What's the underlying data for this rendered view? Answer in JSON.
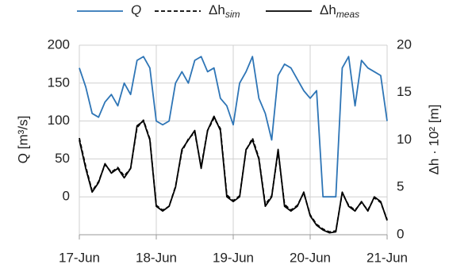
{
  "chart_data": {
    "type": "line",
    "y_label": "Q [m³/s]",
    "y2_label": "Δh · 10² [m]",
    "x": [
      0,
      2,
      4,
      6,
      8,
      10,
      12,
      14,
      16,
      18,
      20,
      22,
      24,
      26,
      28,
      30,
      32,
      34,
      36,
      38,
      40,
      42,
      44,
      46,
      48,
      50,
      52,
      54,
      56,
      58,
      60,
      62,
      64,
      66,
      68,
      70,
      72,
      74,
      76,
      78,
      80,
      82,
      84,
      86,
      88,
      90,
      92,
      94,
      96
    ],
    "xlim": [
      0,
      96
    ],
    "xticks": [
      {
        "value": 0,
        "label": "17-Jun"
      },
      {
        "value": 24,
        "label": "18-Jun"
      },
      {
        "value": 48,
        "label": "19-Jun"
      },
      {
        "value": 72,
        "label": "20-Jun"
      },
      {
        "value": 96,
        "label": "21-Jun"
      }
    ],
    "ylim": [
      -50,
      200
    ],
    "yticks": [
      0,
      50,
      100,
      150,
      200
    ],
    "y2lim": [
      0,
      20
    ],
    "y2ticks": [
      0,
      5,
      10,
      15,
      20
    ],
    "grid": true,
    "legend": "top",
    "series": [
      {
        "name": "Q",
        "color": "#2e75b6",
        "dash": false,
        "values": [
          170,
          145,
          110,
          105,
          125,
          135,
          120,
          150,
          135,
          180,
          185,
          170,
          100,
          95,
          100,
          150,
          165,
          150,
          180,
          185,
          165,
          170,
          130,
          120,
          95,
          150,
          165,
          185,
          130,
          110,
          75,
          160,
          175,
          170,
          155,
          140,
          130,
          140,
          0,
          0,
          0,
          170,
          185,
          120,
          180,
          170,
          165,
          160,
          100
        ]
      },
      {
        "name": "Δh",
        "subscript": "sim",
        "color": "#000000",
        "dash": true,
        "axis": "y2",
        "values": [
          10.2,
          7.2,
          4.6,
          5.6,
          7.4,
          6.6,
          7.1,
          6.2,
          7.0,
          11.3,
          12.1,
          10.1,
          3.1,
          2.6,
          3.0,
          5.1,
          8.8,
          10.1,
          10.8,
          7.2,
          11.0,
          12.3,
          11.2,
          4.2,
          3.6,
          4.1,
          8.9,
          10.2,
          8.1,
          3.2,
          4.1,
          8.8,
          3.2,
          2.6,
          3.1,
          4.4,
          2.1,
          1.1,
          0.6,
          0.3,
          0.4,
          4.4,
          3.1,
          2.6,
          3.4,
          2.6,
          3.9,
          3.4,
          1.6
        ]
      },
      {
        "name": "Δh",
        "subscript": "meas",
        "color": "#000000",
        "dash": false,
        "axis": "y2",
        "values": [
          10,
          7,
          4.5,
          5.5,
          7.5,
          6.5,
          7,
          6,
          7,
          11.5,
          12,
          10,
          3,
          2.5,
          3,
          5,
          9,
          10,
          11,
          7,
          11,
          12.5,
          11,
          4,
          3.5,
          4,
          9,
          10,
          8,
          3,
          4,
          9,
          3,
          2.5,
          3,
          4.5,
          2,
          1,
          0.5,
          0.2,
          0.3,
          4.5,
          3,
          2.5,
          3.5,
          2.5,
          4,
          3.5,
          1.5
        ]
      }
    ]
  }
}
